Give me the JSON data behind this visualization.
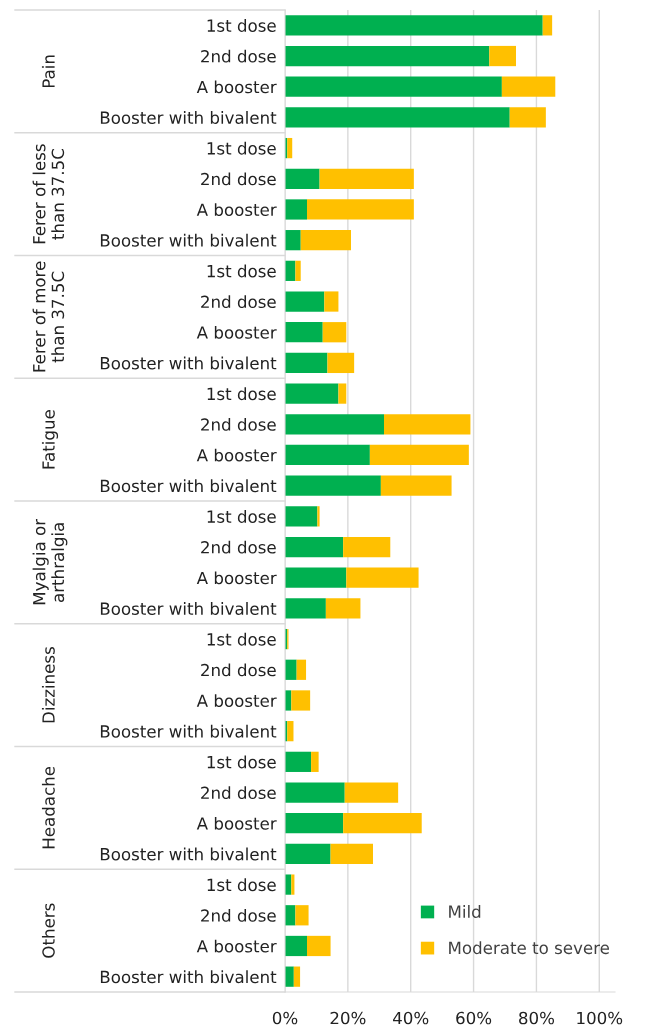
{
  "chart_data": {
    "type": "bar",
    "orientation": "horizontal",
    "stacked": true,
    "categories": [
      "1st dose",
      "2nd dose",
      "A booster",
      "Booster with bivalent",
      "1st dose",
      "2nd dose",
      "A booster",
      "Booster with bivalent",
      "1st dose",
      "2nd dose",
      "A booster",
      "Booster with bivalent",
      "1st dose",
      "2nd dose",
      "A booster",
      "Booster with bivalent",
      "1st dose",
      "2nd dose",
      "A booster",
      "Booster with bivalent",
      "1st dose",
      "2nd dose",
      "A booster",
      "Booster with bivalent",
      "1st dose",
      "2nd dose",
      "A booster",
      "Booster with bivalent",
      "1st dose",
      "2nd dose",
      "A booster",
      "Booster with bivalent"
    ],
    "series": [
      {
        "name": "Mild",
        "color": "#00b050",
        "values": [
          82,
          65,
          69,
          71.5,
          0.7,
          11,
          7,
          5,
          3.3,
          12.5,
          12,
          13.5,
          17,
          31.5,
          27,
          30.5,
          10.3,
          18.5,
          19.5,
          13,
          0.7,
          3.7,
          2,
          0.7,
          8.3,
          19,
          18.5,
          14.5,
          2,
          3.3,
          7,
          2.8
        ]
      },
      {
        "name": "Moderate to severe",
        "color": "#ffc000",
        "values": [
          3,
          8.5,
          17,
          11.5,
          1.6,
          30,
          34,
          16,
          1.7,
          4.5,
          7.5,
          8.5,
          2.5,
          27.5,
          31.5,
          22.5,
          0.7,
          15,
          23,
          11,
          0.4,
          3,
          6,
          2,
          2.4,
          17,
          25,
          13.5,
          1,
          4.2,
          7.5,
          2
        ]
      }
    ],
    "annotations": [
      "Pain",
      "Ferer of less than 37.5C",
      "Ferer of more than 37.5C",
      "Fatigue",
      "Myalgia or arthralgia",
      "Dizziness",
      "Headache",
      "Others"
    ],
    "xlim": [
      0,
      105
    ],
    "xticks": [
      {
        "value": 0,
        "label": "0%"
      },
      {
        "value": 20,
        "label": "20%"
      },
      {
        "value": 40,
        "label": "40%"
      },
      {
        "value": 60,
        "label": "60%"
      },
      {
        "value": 80,
        "label": "80%"
      },
      {
        "value": 100,
        "label": "100%"
      }
    ],
    "grid": "x",
    "legend": "bottom right"
  }
}
